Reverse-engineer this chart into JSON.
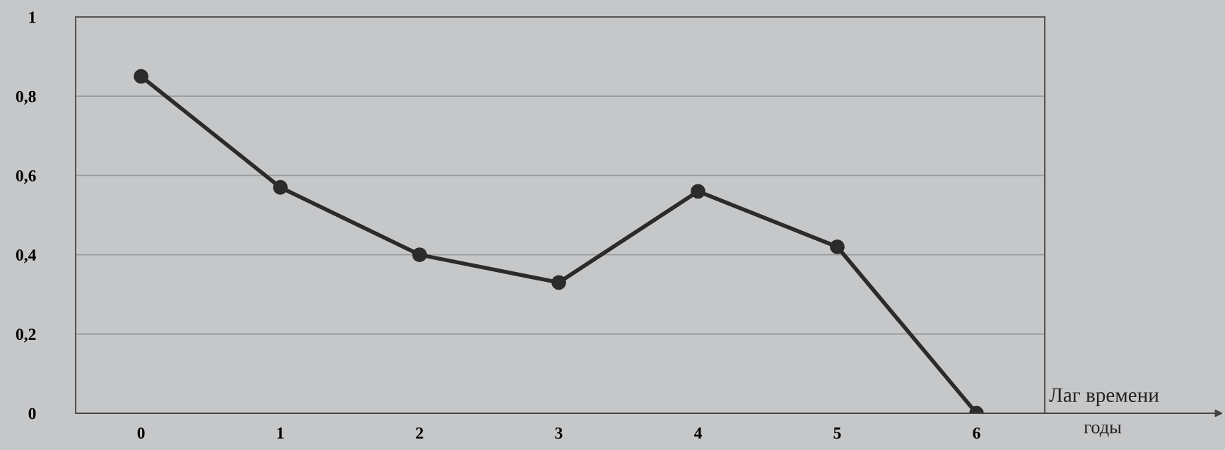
{
  "chart_data": {
    "type": "line",
    "xlabel": "Лаг времени",
    "annotations": [
      "годы"
    ],
    "categories": [
      "0",
      "1",
      "2",
      "3",
      "4",
      "5",
      "6"
    ],
    "series": [
      {
        "color": "#2b2b2b",
        "values": [
          0.85,
          0.57,
          0.4,
          0.33,
          0.56,
          0.42,
          0
        ]
      }
    ],
    "ylim": [
      0,
      1
    ],
    "yticks": [
      0,
      {
        "value": 0.2,
        "label": "0,2"
      },
      {
        "value": 0.4,
        "label": "0,4"
      },
      {
        "value": 0.6,
        "label": "0,6"
      },
      {
        "value": 0.8,
        "label": "0,8"
      },
      1
    ],
    "grid": "y",
    "marker": "circle",
    "line_style": "solid"
  }
}
